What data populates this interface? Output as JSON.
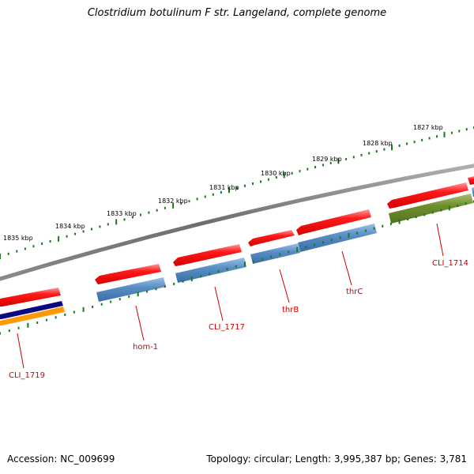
{
  "title": "Clostridium botulinum F str. Langeland, complete genome",
  "footer": {
    "accession": "Accession: NC_009699",
    "summary": "Topology: circular; Length: 3,995,387 bp; Genes: 3,781"
  },
  "ticks": [
    {
      "label": "1827 kbp"
    },
    {
      "label": "1828 kbp"
    },
    {
      "label": "1829 kbp"
    },
    {
      "label": "1830 kbp"
    },
    {
      "label": "1831 kbp"
    },
    {
      "label": "1832 kbp"
    },
    {
      "label": "1833 kbp"
    },
    {
      "label": "1834 kbp"
    },
    {
      "label": "1835 kbp"
    }
  ],
  "gene_labels": [
    {
      "label": "CLI_1714"
    },
    {
      "label": "thrC"
    },
    {
      "label": "thrB"
    },
    {
      "label": "CLI_1717"
    },
    {
      "label": "hom-1"
    },
    {
      "label": "CLI_1719"
    }
  ],
  "colors": {
    "backbone": "#808080",
    "tick": "#1a7a1a",
    "gene_red": "#ff0000",
    "cds_blue": "#4f86bf",
    "cds_green": "#6b8c2a",
    "cds_navy": "#0a0a80",
    "cds_orange": "#ff9900",
    "label_red": "#cc0000"
  }
}
